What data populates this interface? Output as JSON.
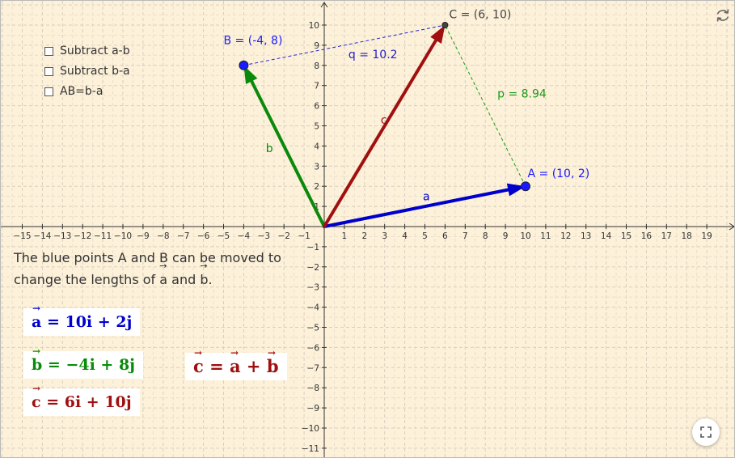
{
  "checkboxes": [
    {
      "label": "Subtract a-b",
      "checked": false
    },
    {
      "label": "Subtract b-a",
      "checked": false
    },
    {
      "label": "AB=b-a",
      "checked": false
    }
  ],
  "instruction": {
    "line1": "The blue points A and B can be moved to",
    "line2_prefix": "change the lengths of ",
    "vec_a": "a",
    "and": " and ",
    "vec_b": "b",
    "suffix": "."
  },
  "equations": {
    "a": {
      "vector": "a",
      "rhs": "=  10i + 2j",
      "color": "#0000cc"
    },
    "b": {
      "vector": "b",
      "rhs": "=  −4i + 8j",
      "color": "#0a8a0a"
    },
    "c": {
      "vector": "c",
      "rhs": "=  6i + 10j",
      "color": "#a01010"
    },
    "sum": {
      "c": "c",
      "eq": " = ",
      "a": "a",
      "plus": " + ",
      "b": "b",
      "color": "#a01010"
    }
  },
  "points": {
    "A": {
      "label": "A = (10, 2)",
      "x": 10,
      "y": 2,
      "color": "#1a1aff"
    },
    "B": {
      "label": "B = (-4, 8)",
      "x": -4,
      "y": 8,
      "color": "#1a1aff"
    },
    "C": {
      "label": "C = (6, 10)",
      "x": 6,
      "y": 10,
      "color": "#444444"
    }
  },
  "vectors": {
    "a": {
      "label": "a",
      "to": [
        10,
        2
      ],
      "color": "#0000cc"
    },
    "b": {
      "label": "b",
      "to": [
        -4,
        8
      ],
      "color": "#0a8a0a"
    },
    "c": {
      "label": "c",
      "to": [
        6,
        10
      ],
      "color": "#a01010"
    }
  },
  "segments": {
    "q": {
      "label": "q = 10.2",
      "from": [
        -4,
        8
      ],
      "to": [
        6,
        10
      ],
      "color": "#2222cc"
    },
    "p": {
      "label": "p = 8.94",
      "from": [
        10,
        2
      ],
      "to": [
        6,
        10
      ],
      "color": "#1a9a1a"
    }
  },
  "axes": {
    "x_ticks": [
      -15,
      -14,
      -13,
      -12,
      -11,
      -10,
      -9,
      -8,
      -7,
      -6,
      -5,
      -4,
      -3,
      -2,
      -1,
      1,
      2,
      3,
      4,
      5,
      6,
      7,
      8,
      9,
      10,
      11,
      12,
      13,
      14,
      15,
      16,
      17,
      18,
      19
    ],
    "y_ticks": [
      -11,
      -10,
      -9,
      -8,
      -7,
      -6,
      -5,
      -4,
      -3,
      -2,
      -1,
      1,
      2,
      3,
      4,
      5,
      6,
      7,
      8,
      9,
      10
    ]
  },
  "icons": {
    "refresh": "refresh-icon",
    "fullscreen": "fullscreen-icon"
  }
}
